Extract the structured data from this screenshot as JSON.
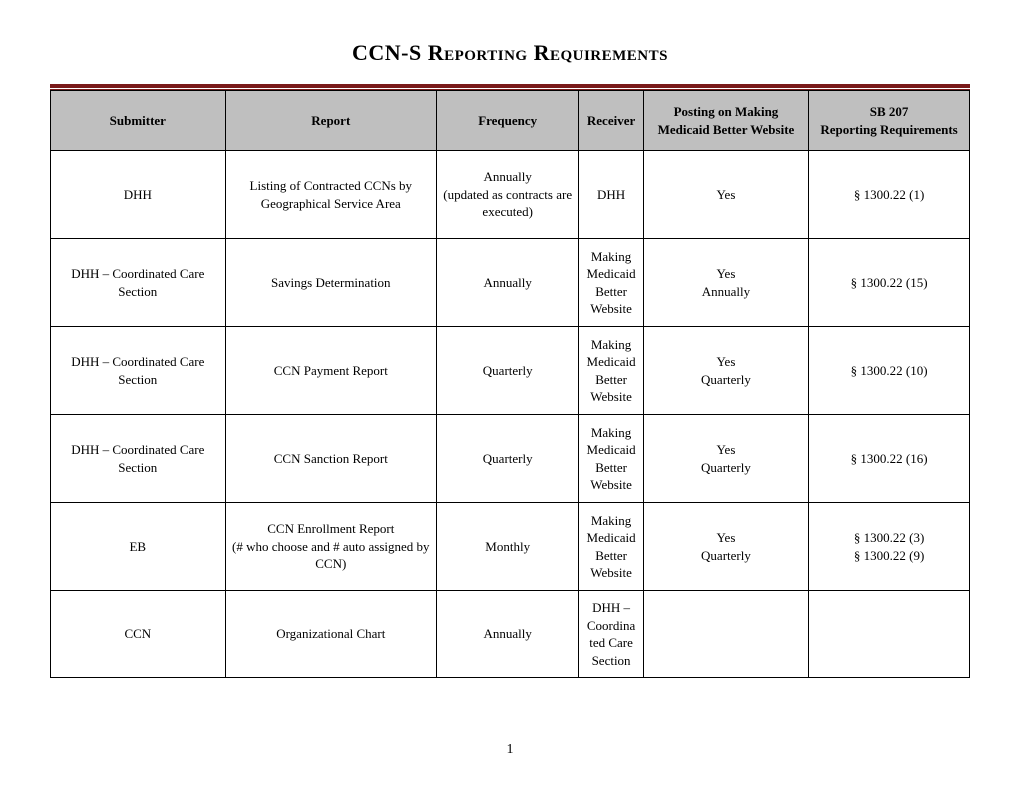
{
  "title": "CCN-S Reporting Requirements",
  "page_number": "1",
  "columns": [
    {
      "key": "submitter",
      "label": "Submitter"
    },
    {
      "key": "report",
      "label": "Report"
    },
    {
      "key": "frequency",
      "label": "Frequency"
    },
    {
      "key": "receiver",
      "label": "Receiver"
    },
    {
      "key": "posting",
      "label": "Posting on Making Medicaid Better Website"
    },
    {
      "key": "sb207",
      "label": "SB 207\nReporting Requirements"
    }
  ],
  "rows": [
    {
      "submitter": "DHH",
      "report": "Listing of Contracted CCNs by Geographical Service Area",
      "frequency": "Annually\n(updated as contracts are executed)",
      "receiver": "DHH",
      "posting": "Yes",
      "sb207": "§ 1300.22  (1)"
    },
    {
      "submitter": "DHH – Coordinated Care Section",
      "report": "Savings Determination",
      "frequency": "Annually",
      "receiver": "Making Medicaid Better Website",
      "posting": "Yes\nAnnually",
      "sb207": "§ 1300.22 (15)"
    },
    {
      "submitter": "DHH – Coordinated Care Section",
      "report": "CCN Payment Report",
      "frequency": "Quarterly",
      "receiver": "Making Medicaid Better Website",
      "posting": "Yes\nQuarterly",
      "sb207": "§ 1300.22 (10)"
    },
    {
      "submitter": "DHH – Coordinated Care Section",
      "report": "CCN Sanction Report",
      "frequency": "Quarterly",
      "receiver": "Making Medicaid Better Website",
      "posting": "Yes\nQuarterly",
      "sb207": "§ 1300.22 (16)"
    },
    {
      "submitter": "EB",
      "report": "CCN Enrollment Report\n(# who choose and # auto assigned by CCN)",
      "frequency": "Monthly",
      "receiver": "Making Medicaid Better Website",
      "posting": "Yes\nQuarterly",
      "sb207": "§ 1300.22 (3)\n§ 1300.22 (9)"
    },
    {
      "submitter": "CCN",
      "report": "Organizational Chart",
      "frequency": "Annually",
      "receiver": "DHH – Coordinated Care Section",
      "posting": "",
      "sb207": ""
    }
  ],
  "colors": {
    "rule": "#7a1a1a",
    "header_bg": "#bfbfbf",
    "border": "#000000",
    "text": "#000000",
    "background": "#ffffff"
  }
}
